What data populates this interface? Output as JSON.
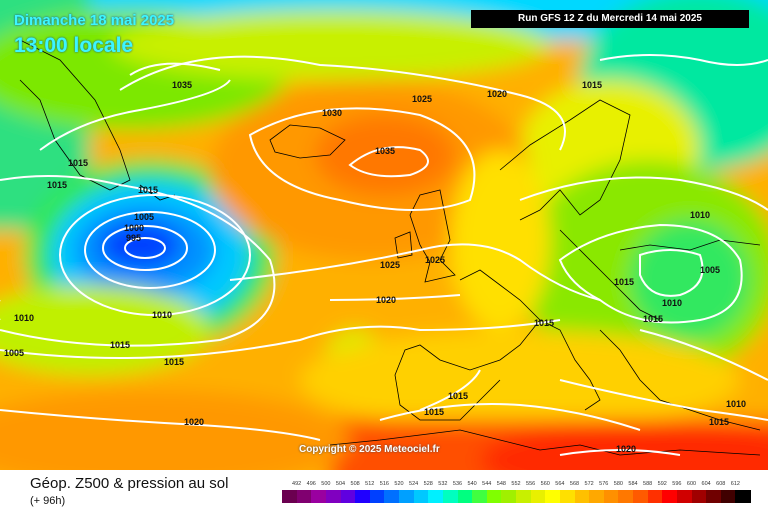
{
  "header": {
    "date": "Dimanche 18 mai 2025",
    "time": "13:00 locale",
    "run": "Run GFS 12 Z du Mercredi 14 mai 2025"
  },
  "copyright": "Copyright © 2025 Meteociel.fr",
  "footer": {
    "title": "Géop. Z500 & pression au sol",
    "subtitle": "(+ 96h)"
  },
  "legend": {
    "values": [
      "492",
      "496",
      "500",
      "504",
      "508",
      "512",
      "516",
      "520",
      "524",
      "528",
      "532",
      "536",
      "540",
      "544",
      "548",
      "552",
      "556",
      "560",
      "564",
      "568",
      "572",
      "576",
      "580",
      "584",
      "588",
      "592",
      "596",
      "600",
      "604",
      "608",
      "612"
    ],
    "colors": [
      "#6b0050",
      "#800070",
      "#9a00a0",
      "#8000c0",
      "#6000e0",
      "#2000ff",
      "#0040ff",
      "#0070ff",
      "#00a0ff",
      "#00c8ff",
      "#00f0ff",
      "#00ffc0",
      "#00ff80",
      "#40ff40",
      "#80ff00",
      "#a0f000",
      "#c8f000",
      "#e8f000",
      "#ffff00",
      "#ffe000",
      "#ffc000",
      "#ffa800",
      "#ff9000",
      "#ff7800",
      "#ff5a00",
      "#ff3000",
      "#ff0000",
      "#d00000",
      "#a00000",
      "#700000",
      "#400000",
      "#000000"
    ]
  },
  "isobars": [
    {
      "value": "1035"
    },
    {
      "value": "1015"
    },
    {
      "value": "1015"
    },
    {
      "value": "1015"
    },
    {
      "value": "1005"
    },
    {
      "value": "1000"
    },
    {
      "value": "995"
    },
    {
      "value": "1030"
    },
    {
      "value": "1035"
    },
    {
      "value": "1025"
    },
    {
      "value": "1020"
    },
    {
      "value": "1015"
    },
    {
      "value": "1025"
    },
    {
      "value": "1025"
    },
    {
      "value": "1020"
    },
    {
      "value": "1010"
    },
    {
      "value": "1010"
    },
    {
      "value": "1005"
    },
    {
      "value": "1015"
    },
    {
      "value": "1015"
    },
    {
      "value": "1015"
    },
    {
      "value": "1015"
    },
    {
      "value": "1015"
    },
    {
      "value": "1010"
    },
    {
      "value": "1005"
    },
    {
      "value": "1010"
    },
    {
      "value": "1015"
    },
    {
      "value": "1015"
    },
    {
      "value": "1020"
    },
    {
      "value": "1020"
    },
    {
      "value": "1010"
    },
    {
      "value": "1015"
    }
  ]
}
